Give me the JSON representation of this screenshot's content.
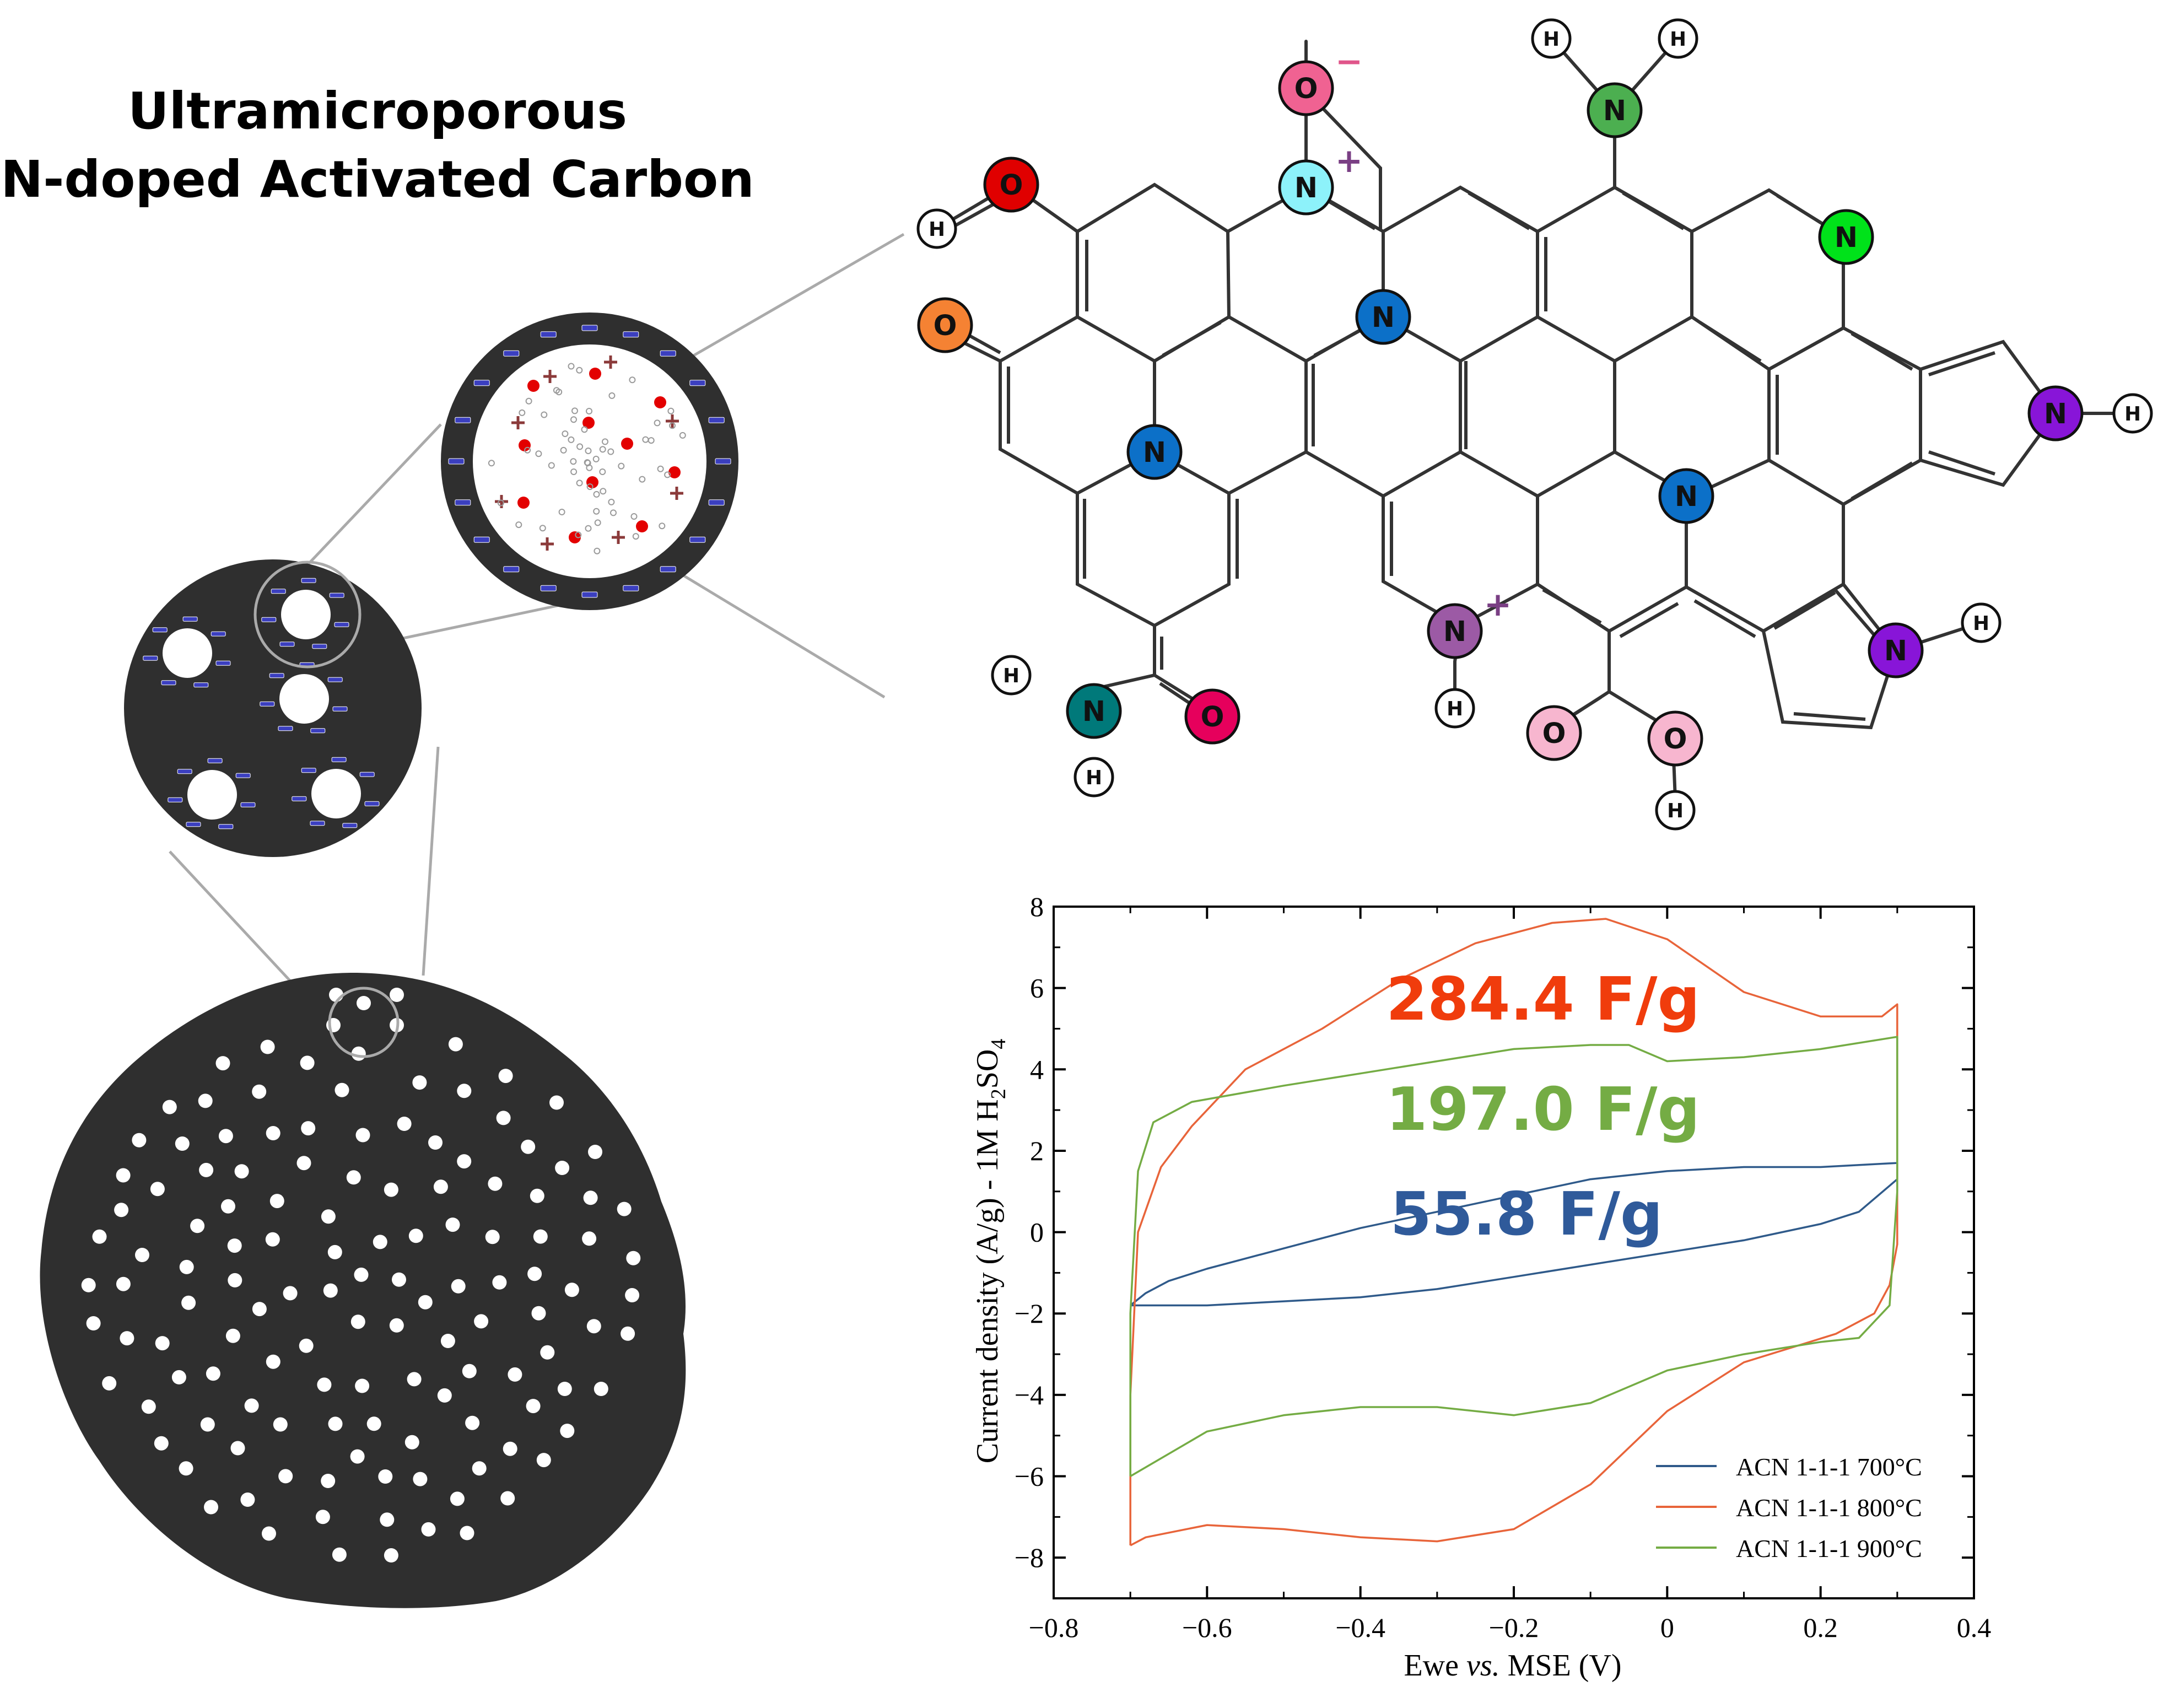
{
  "title": {
    "line1": "Ultramicroporous",
    "line2": "N-doped Activated Carbon"
  },
  "colors": {
    "carbon": "#2f2f2f",
    "pore": "#ffffff",
    "negative_charge": "#3b3fbf",
    "positive_charge": "#8b3a3a",
    "ion_dot": "#e30000",
    "zoom_line": "#aaaaaa",
    "bond": "#333333"
  },
  "molecule": {
    "bond_color": "#333333",
    "atoms": [
      {
        "label": "O",
        "charge": "−",
        "color": "#f06292"
      },
      {
        "label": "N",
        "charge": "+",
        "color": "#8df2fa"
      },
      {
        "label": "H",
        "color": "#ffffff"
      },
      {
        "label": "H",
        "color": "#ffffff"
      },
      {
        "label": "N",
        "color": "#4caf50"
      },
      {
        "label": "O",
        "color": "#e00000"
      },
      {
        "label": "H",
        "color": "#ffffff"
      },
      {
        "label": "N",
        "color": "#00e21a"
      },
      {
        "label": "O",
        "color": "#f58233"
      },
      {
        "label": "N",
        "color": "#0c70c8"
      },
      {
        "label": "N",
        "color": "#0c70c8"
      },
      {
        "label": "N",
        "color": "#0c70c8"
      },
      {
        "label": "N",
        "color": "#8815d8"
      },
      {
        "label": "H",
        "color": "#ffffff"
      },
      {
        "label": "N",
        "color": "#8815d8"
      },
      {
        "label": "H",
        "color": "#ffffff"
      },
      {
        "label": "N",
        "charge": "+",
        "color": "#9c5aa5"
      },
      {
        "label": "H",
        "color": "#ffffff"
      },
      {
        "label": "H",
        "color": "#ffffff"
      },
      {
        "label": "N",
        "color": "#00797a"
      },
      {
        "label": "H",
        "color": "#ffffff"
      },
      {
        "label": "O",
        "color": "#e6005c"
      },
      {
        "label": "O",
        "color": "#f7b6cf"
      },
      {
        "label": "O",
        "color": "#f7b6cf"
      },
      {
        "label": "H",
        "color": "#ffffff"
      }
    ]
  },
  "annotations": [
    {
      "text": "284.4 F/g",
      "color": "#f03c0c"
    },
    {
      "text": "197.0 F/g",
      "color": "#74ac44"
    },
    {
      "text": "55.8 F/g",
      "color": "#2f5a9a"
    }
  ],
  "chart_data": {
    "type": "line",
    "xlabel_parts": [
      "Ewe ",
      "vs.",
      " MSE (V)"
    ],
    "ylabel_parts": [
      "Current density (A/g) - 1M H",
      "2",
      "SO",
      "4"
    ],
    "xlim": [
      -0.8,
      0.4
    ],
    "ylim": [
      -9,
      8
    ],
    "xticks": [
      -0.8,
      -0.6,
      -0.4,
      -0.2,
      0,
      0.2,
      0.4
    ],
    "xtick_labels": [
      "−0.8",
      "−0.6",
      "−0.4",
      "−0.2",
      "0",
      "0.2",
      "0.4"
    ],
    "yticks": [
      -8,
      -6,
      -4,
      -2,
      0,
      2,
      4,
      6,
      8
    ],
    "ytick_labels": [
      "−8",
      "−6",
      "−4",
      "−2",
      "0",
      "2",
      "4",
      "6",
      "8"
    ],
    "legend_position": "lower right",
    "series": [
      {
        "name": "ACN 1-1-1 700°C",
        "color": "#2f5a8a",
        "x": [
          -0.7,
          -0.68,
          -0.65,
          -0.6,
          -0.5,
          -0.4,
          -0.3,
          -0.2,
          -0.1,
          0.0,
          0.1,
          0.2,
          0.3,
          0.3,
          0.25,
          0.2,
          0.1,
          0.0,
          -0.1,
          -0.2,
          -0.3,
          -0.4,
          -0.5,
          -0.6,
          -0.7
        ],
        "y": [
          -1.8,
          -1.5,
          -1.2,
          -0.9,
          -0.4,
          0.1,
          0.5,
          0.9,
          1.3,
          1.5,
          1.6,
          1.6,
          1.7,
          1.3,
          0.5,
          0.2,
          -0.2,
          -0.5,
          -0.8,
          -1.1,
          -1.4,
          -1.6,
          -1.7,
          -1.8,
          -1.8
        ]
      },
      {
        "name": "ACN 1-1-1 800°C",
        "color": "#e8643a",
        "x": [
          -0.7,
          -0.7,
          -0.69,
          -0.66,
          -0.62,
          -0.55,
          -0.45,
          -0.35,
          -0.25,
          -0.15,
          -0.08,
          0.0,
          0.1,
          0.2,
          0.28,
          0.3,
          0.3,
          0.29,
          0.27,
          0.22,
          0.1,
          0.0,
          -0.1,
          -0.2,
          -0.3,
          -0.4,
          -0.5,
          -0.6,
          -0.68,
          -0.7
        ],
        "y": [
          -7.7,
          -4.0,
          0.0,
          1.6,
          2.6,
          4.0,
          5.0,
          6.2,
          7.1,
          7.6,
          7.7,
          7.2,
          5.9,
          5.3,
          5.3,
          5.6,
          -0.3,
          -1.3,
          -2.0,
          -2.5,
          -3.2,
          -4.4,
          -6.2,
          -7.3,
          -7.6,
          -7.5,
          -7.3,
          -7.2,
          -7.5,
          -7.7
        ]
      },
      {
        "name": "ACN 1-1-1 900°C",
        "color": "#74ac44",
        "x": [
          -0.7,
          -0.7,
          -0.69,
          -0.67,
          -0.62,
          -0.5,
          -0.4,
          -0.3,
          -0.2,
          -0.1,
          -0.05,
          0.0,
          0.1,
          0.2,
          0.3,
          0.3,
          0.29,
          0.25,
          0.2,
          0.1,
          0.0,
          -0.1,
          -0.2,
          -0.3,
          -0.4,
          -0.5,
          -0.6,
          -0.7
        ],
        "y": [
          -6.0,
          -2.0,
          1.5,
          2.7,
          3.2,
          3.6,
          3.9,
          4.2,
          4.5,
          4.6,
          4.6,
          4.2,
          4.3,
          4.5,
          4.8,
          1.0,
          -1.8,
          -2.6,
          -2.7,
          -3.0,
          -3.4,
          -4.2,
          -4.5,
          -4.3,
          -4.3,
          -4.5,
          -4.9,
          -6.0
        ]
      }
    ]
  }
}
